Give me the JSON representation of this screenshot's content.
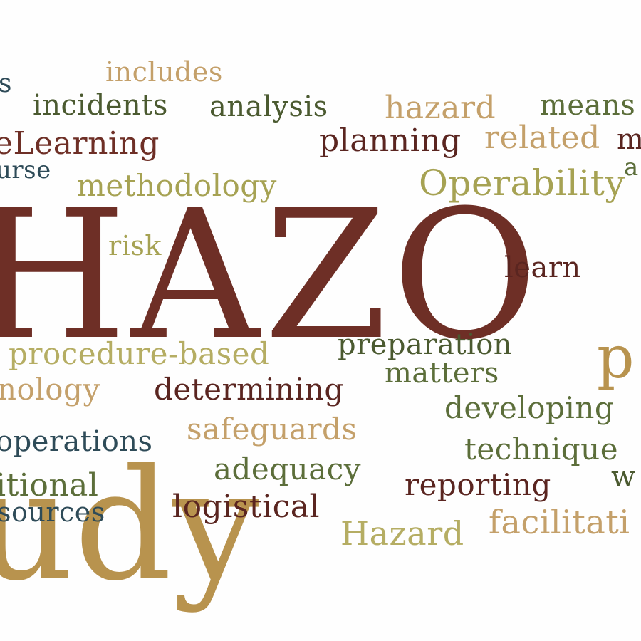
{
  "words": {
    "includes": "includes",
    "s_fragment": "s",
    "incidents": "incidents",
    "analysis": "analysis",
    "hazard_lower": "hazard",
    "means": "means",
    "elearning": "eLearning",
    "planning": "planning",
    "related": "related",
    "m_fragment": "m",
    "urse": "urse",
    "methodology": "methodology",
    "operability": "Operability",
    "a_fragment": "a",
    "hazop": "HAZO",
    "risk": "risk",
    "learn": "learn",
    "procedure_based": "procedure-based",
    "preparation": "preparation",
    "p_fragment": "p",
    "nology": "nology",
    "determining": "determining",
    "matters": "matters",
    "developing": "developing",
    "operations": "operations",
    "safeguards": "safeguards",
    "techniques": "technique",
    "adequacy": "adequacy",
    "itional": "itional",
    "reporting": "reporting",
    "w_fragment": "w",
    "sources": "sources",
    "logistical": "logistical",
    "hazard_cap": "Hazard",
    "facilitation": "facilitati",
    "udy": "udy"
  },
  "colors": {
    "brown": "#6e2f26",
    "gold": "#b8934e",
    "olive": "#a6a253",
    "green": "#5c6e3a",
    "teal": "#2e4b58"
  }
}
